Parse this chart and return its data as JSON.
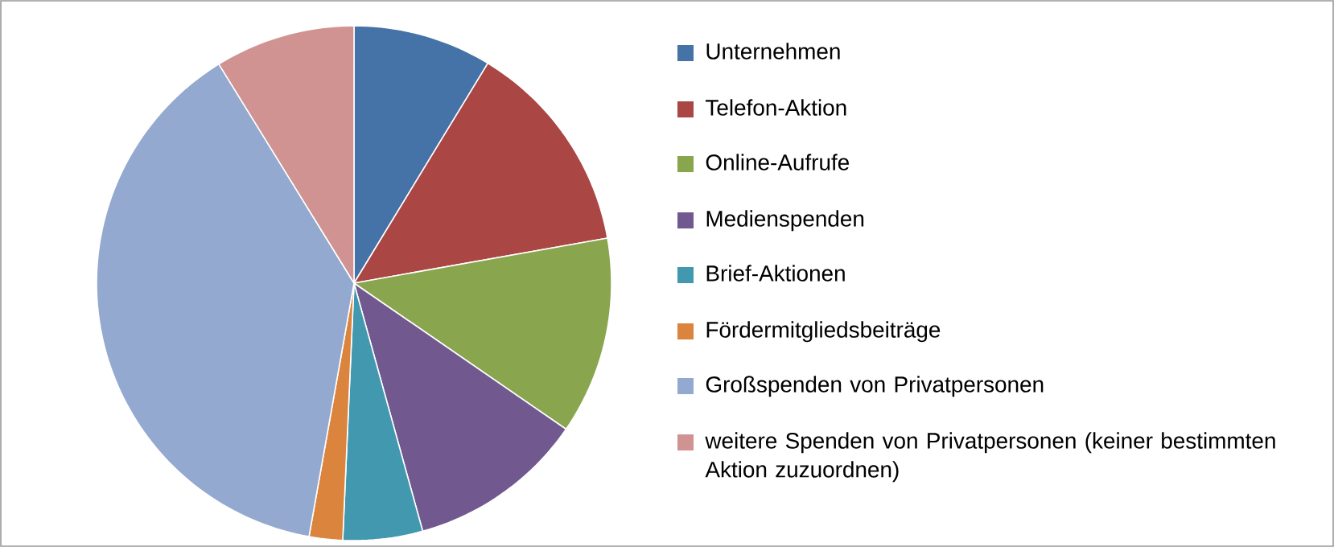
{
  "chart_data": {
    "type": "pie",
    "categories": [
      "Unternehmen",
      "Telefon-Aktion",
      "Online-Aufrufe",
      "Medienspenden",
      "Brief-Aktionen",
      "Fördermitgliedsbeiträge",
      "Großspenden von Privatpersonen",
      "weitere Spenden von Privatpersonen (keiner bestimmten Aktion zuzuordnen)"
    ],
    "values": [
      8.7,
      13.5,
      12.4,
      11.1,
      5.0,
      2.1,
      38.4,
      8.8
    ],
    "colors": [
      "#4572a7",
      "#aa4643",
      "#89a54e",
      "#71588f",
      "#4198af",
      "#db843d",
      "#93a9cf",
      "#d19392"
    ],
    "legend": "right"
  }
}
